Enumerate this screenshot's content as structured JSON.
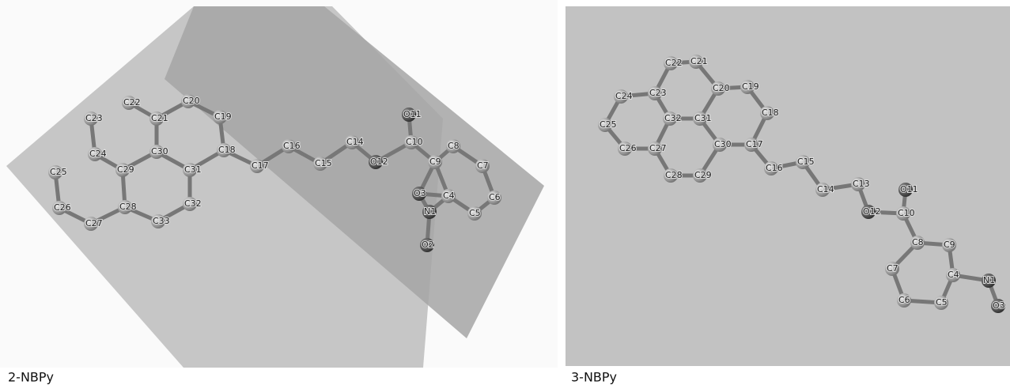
{
  "panels": [
    {
      "caption": "2-NBPy",
      "atoms": [
        "C22",
        "C20",
        "C23",
        "C21",
        "C19",
        "C24",
        "C30",
        "C18",
        "C25",
        "C29",
        "C31",
        "C17",
        "C16",
        "C15",
        "C14",
        "O12",
        "C10",
        "O11",
        "C9",
        "C8",
        "C7",
        "C6",
        "C5",
        "C4",
        "N1",
        "O3",
        "O2",
        "C26",
        "C28",
        "C32",
        "C27",
        "C33"
      ]
    },
    {
      "caption": "3-NBPy",
      "atoms": [
        "C22",
        "C21",
        "C24",
        "C23",
        "C20",
        "C19",
        "C25",
        "C32",
        "C31",
        "C18",
        "C26",
        "C27",
        "C30",
        "C17",
        "C28",
        "C29",
        "C16",
        "C15",
        "C14",
        "C13",
        "O12",
        "C10",
        "O11",
        "C8",
        "C9",
        "C7",
        "C4",
        "N1",
        "C6",
        "C5",
        "O3"
      ]
    }
  ]
}
